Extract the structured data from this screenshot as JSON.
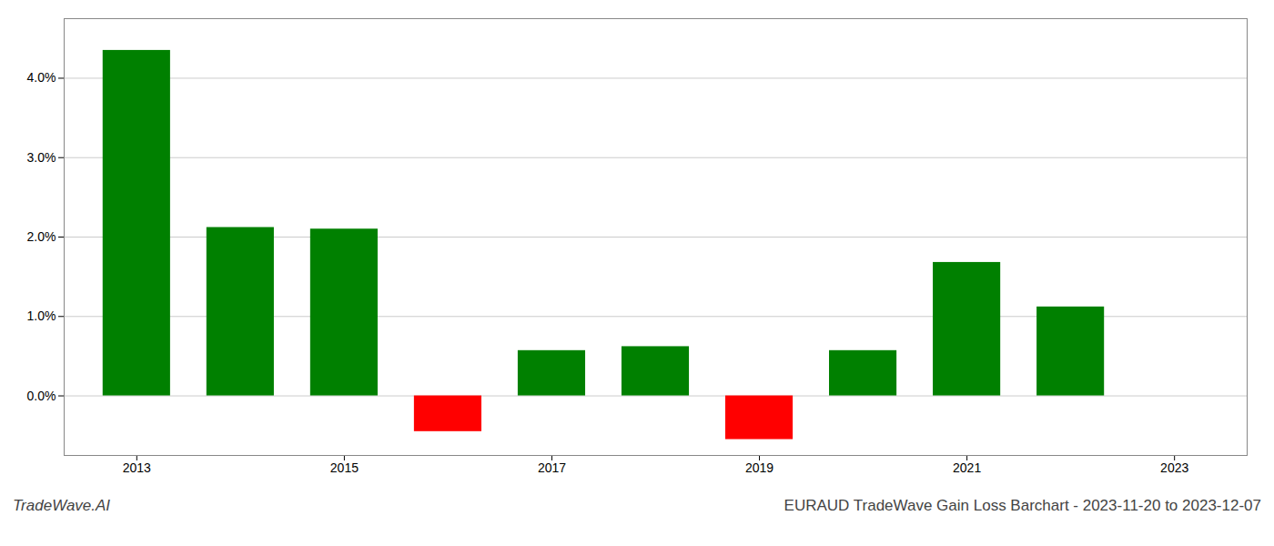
{
  "chart_data": {
    "type": "bar",
    "title": "EURAUD TradeWave Gain Loss Barchart - 2023-11-20 to 2023-12-07",
    "annotations": [
      "TradeWave.AI"
    ],
    "x": [
      2013,
      2014,
      2015,
      2016,
      2017,
      2018,
      2019,
      2020,
      2021,
      2022
    ],
    "values": [
      4.35,
      2.12,
      2.1,
      -0.45,
      0.57,
      0.62,
      -0.55,
      0.57,
      1.68,
      1.12
    ],
    "colors": [
      "#008000",
      "#008000",
      "#008000",
      "#ff0000",
      "#008000",
      "#008000",
      "#ff0000",
      "#008000",
      "#008000",
      "#008000"
    ],
    "xlim": [
      2012.3,
      2023.7
    ],
    "xticks": [
      2013,
      2015,
      2017,
      2019,
      2021,
      2023
    ],
    "ylim": [
      -0.75,
      4.75
    ],
    "yticks": [
      {
        "value": 0.0,
        "label": "0.0%"
      },
      {
        "value": 1.0,
        "label": "1.0%"
      },
      {
        "value": 2.0,
        "label": "2.0%"
      },
      {
        "value": 3.0,
        "label": "3.0%"
      },
      {
        "value": 4.0,
        "label": "4.0%"
      }
    ],
    "grid": true
  }
}
